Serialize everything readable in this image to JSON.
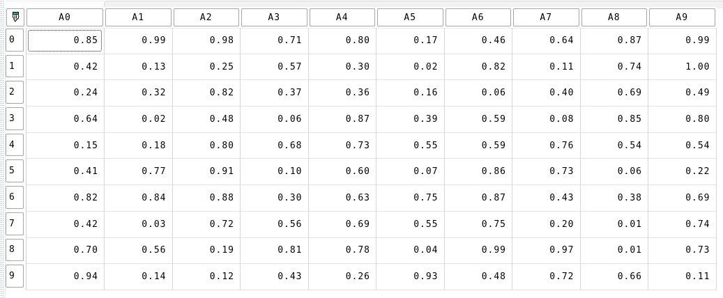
{
  "topstrip": {
    "note_visible_text": ""
  },
  "grid": {
    "corner_icon": "writing-hand-icon",
    "columns": [
      "A0",
      "A1",
      "A2",
      "A3",
      "A4",
      "A5",
      "A6",
      "A7",
      "A8",
      "A9"
    ],
    "row_labels": [
      "0",
      "1",
      "2",
      "3",
      "4",
      "5",
      "6",
      "7",
      "8",
      "9"
    ],
    "rows": [
      [
        "0.85",
        "0.99",
        "0.98",
        "0.71",
        "0.80",
        "0.17",
        "0.46",
        "0.64",
        "0.87",
        "0.99"
      ],
      [
        "0.42",
        "0.13",
        "0.25",
        "0.57",
        "0.30",
        "0.02",
        "0.82",
        "0.11",
        "0.74",
        "1.00"
      ],
      [
        "0.24",
        "0.32",
        "0.82",
        "0.37",
        "0.36",
        "0.16",
        "0.06",
        "0.40",
        "0.69",
        "0.49"
      ],
      [
        "0.64",
        "0.02",
        "0.48",
        "0.06",
        "0.87",
        "0.39",
        "0.59",
        "0.08",
        "0.85",
        "0.80"
      ],
      [
        "0.15",
        "0.18",
        "0.80",
        "0.68",
        "0.73",
        "0.55",
        "0.59",
        "0.76",
        "0.54",
        "0.54"
      ],
      [
        "0.41",
        "0.77",
        "0.91",
        "0.10",
        "0.60",
        "0.07",
        "0.86",
        "0.73",
        "0.06",
        "0.22"
      ],
      [
        "0.82",
        "0.84",
        "0.88",
        "0.30",
        "0.63",
        "0.75",
        "0.87",
        "0.43",
        "0.38",
        "0.69"
      ],
      [
        "0.42",
        "0.03",
        "0.72",
        "0.56",
        "0.69",
        "0.55",
        "0.75",
        "0.20",
        "0.01",
        "0.74"
      ],
      [
        "0.70",
        "0.56",
        "0.19",
        "0.81",
        "0.78",
        "0.04",
        "0.99",
        "0.97",
        "0.01",
        "0.73"
      ],
      [
        "0.94",
        "0.14",
        "0.12",
        "0.43",
        "0.26",
        "0.93",
        "0.48",
        "0.72",
        "0.66",
        "0.11"
      ]
    ],
    "selection": {
      "row": 0,
      "col": 0,
      "value": "0.85"
    }
  },
  "colors": {
    "grip_dot_blue": "#7fb0e2",
    "header_box_border": "#a6a6a6",
    "grid_line_vertical": "#d5d5d5",
    "grid_line_horizontal": "#e2e2e2",
    "strip_background": "#f1f1f1",
    "strip_border": "#d8d8d8",
    "icon_teal": "#1fb0b4",
    "focus_rect": "#1a1a1a"
  }
}
